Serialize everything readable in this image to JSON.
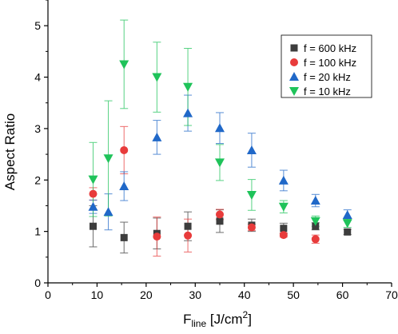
{
  "chart_data": {
    "type": "scatter",
    "title": "",
    "xlabel_main": "F",
    "xlabel_sub": "line",
    "xlabel_rest": " [J/cm",
    "xlabel_sup": "2",
    "xlabel_end": "]",
    "ylabel": "Aspect Ratio",
    "xlim": [
      0,
      70
    ],
    "ylim": [
      0,
      5.5
    ],
    "xticks": [
      0,
      10,
      20,
      30,
      40,
      50,
      60,
      70
    ],
    "yticks": [
      0,
      1,
      2,
      3,
      4,
      5
    ],
    "legend_position": "top-right",
    "series": [
      {
        "name": "f = 600 kHz",
        "marker": "square",
        "color": "#3d3d3d",
        "points": [
          {
            "x": 9.2,
            "y": 1.1,
            "err": 0.4
          },
          {
            "x": 15.5,
            "y": 0.88,
            "err": 0.3
          },
          {
            "x": 22.2,
            "y": 0.96,
            "err": 0.3
          },
          {
            "x": 28.5,
            "y": 1.1,
            "err": 0.28
          },
          {
            "x": 35.0,
            "y": 1.2,
            "err": 0.22
          },
          {
            "x": 41.5,
            "y": 1.12,
            "err": 0.12
          },
          {
            "x": 48.0,
            "y": 1.06,
            "err": 0.1
          },
          {
            "x": 54.5,
            "y": 1.1,
            "err": 0.07
          },
          {
            "x": 61.0,
            "y": 0.99,
            "err": 0.05
          }
        ]
      },
      {
        "name": "f = 100 kHz",
        "marker": "circle",
        "color": "#e83b3b",
        "points": [
          {
            "x": 9.2,
            "y": 1.73,
            "err": 0.12
          },
          {
            "x": 15.5,
            "y": 2.58,
            "err": 0.46
          },
          {
            "x": 22.2,
            "y": 0.9,
            "err": 0.38
          },
          {
            "x": 28.5,
            "y": 0.92,
            "err": 0.32
          },
          {
            "x": 35.0,
            "y": 1.33,
            "err": 0.1
          },
          {
            "x": 41.5,
            "y": 1.08,
            "err": 0.06
          },
          {
            "x": 48.0,
            "y": 0.93,
            "err": 0.04
          },
          {
            "x": 54.5,
            "y": 0.85,
            "err": 0.08
          }
        ]
      },
      {
        "name": "f = 20 kHz",
        "marker": "triangle-up",
        "color": "#2068c8",
        "points": [
          {
            "x": 9.2,
            "y": 1.48,
            "err": 0.13
          },
          {
            "x": 12.3,
            "y": 1.38,
            "err": 0.35
          },
          {
            "x": 15.5,
            "y": 1.88,
            "err": 0.28
          },
          {
            "x": 22.2,
            "y": 2.83,
            "err": 0.33
          },
          {
            "x": 28.5,
            "y": 3.3,
            "err": 0.35
          },
          {
            "x": 35.0,
            "y": 3.01,
            "err": 0.3
          },
          {
            "x": 41.5,
            "y": 2.58,
            "err": 0.33
          },
          {
            "x": 48.0,
            "y": 1.99,
            "err": 0.2
          },
          {
            "x": 54.5,
            "y": 1.6,
            "err": 0.12
          },
          {
            "x": 61.0,
            "y": 1.32,
            "err": 0.1
          }
        ]
      },
      {
        "name": "f = 10 kHz",
        "marker": "triangle-down",
        "color": "#1fc35a",
        "points": [
          {
            "x": 9.2,
            "y": 2.01,
            "err": 0.72
          },
          {
            "x": 12.3,
            "y": 2.42,
            "err": 1.12
          },
          {
            "x": 15.5,
            "y": 4.25,
            "err": 0.86
          },
          {
            "x": 22.2,
            "y": 4.0,
            "err": 0.68
          },
          {
            "x": 28.5,
            "y": 3.81,
            "err": 0.75
          },
          {
            "x": 35.0,
            "y": 2.34,
            "err": 0.35
          },
          {
            "x": 41.5,
            "y": 1.71,
            "err": 0.3
          },
          {
            "x": 48.0,
            "y": 1.48,
            "err": 0.12
          },
          {
            "x": 54.5,
            "y": 1.2,
            "err": 0.1
          },
          {
            "x": 61.0,
            "y": 1.16,
            "err": 0.08
          }
        ]
      }
    ]
  }
}
